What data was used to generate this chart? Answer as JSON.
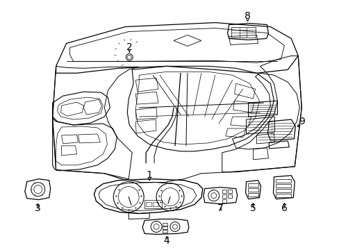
{
  "bg_color": "#ffffff",
  "line_color": "#000000",
  "fig_width": 4.89,
  "fig_height": 3.6,
  "dpi": 100,
  "font_size": 10,
  "label_color": "#000000"
}
